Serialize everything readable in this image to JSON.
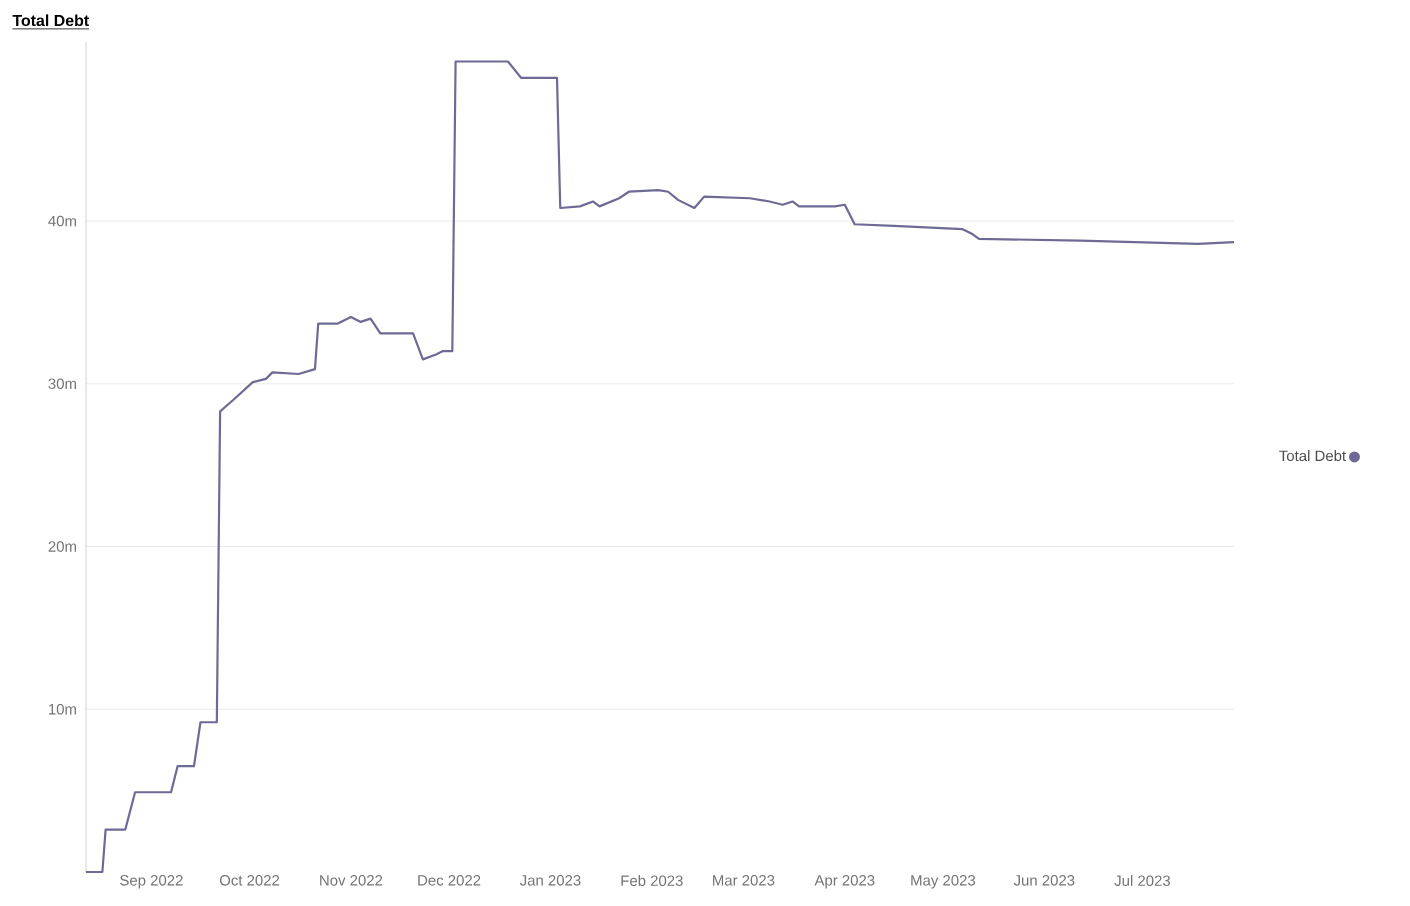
{
  "chart_data": {
    "type": "line",
    "title": "Total Debt",
    "x": [
      "2022-08-12",
      "2022-08-17",
      "2022-08-18",
      "2022-08-24",
      "2022-08-27",
      "2022-09-07",
      "2022-09-09",
      "2022-09-14",
      "2022-09-16",
      "2022-09-21",
      "2022-09-22",
      "2022-09-26",
      "2022-10-02",
      "2022-10-06",
      "2022-10-08",
      "2022-10-16",
      "2022-10-21",
      "2022-10-22",
      "2022-10-28",
      "2022-11-01",
      "2022-11-04",
      "2022-11-07",
      "2022-11-10",
      "2022-11-20",
      "2022-11-23",
      "2022-11-27",
      "2022-11-29",
      "2022-12-02",
      "2022-12-03",
      "2022-12-19",
      "2022-12-23",
      "2023-01-03",
      "2023-01-04",
      "2023-01-10",
      "2023-01-14",
      "2023-01-16",
      "2023-01-22",
      "2023-01-25",
      "2023-02-03",
      "2023-02-06",
      "2023-02-09",
      "2023-02-14",
      "2023-02-17",
      "2023-03-03",
      "2023-03-09",
      "2023-03-13",
      "2023-03-16",
      "2023-03-18",
      "2023-03-29",
      "2023-04-01",
      "2023-04-04",
      "2023-04-16",
      "2023-05-07",
      "2023-05-10",
      "2023-05-12",
      "2023-06-12",
      "2023-07-18",
      "2023-07-29"
    ],
    "series": [
      {
        "name": "Total Debt",
        "color": "#6e6a96",
        "values": [
          0,
          0,
          2.6,
          2.6,
          4.9,
          4.9,
          6.5,
          6.5,
          9.2,
          9.2,
          28.3,
          29.0,
          30.1,
          30.3,
          30.7,
          30.6,
          30.9,
          33.7,
          33.7,
          34.1,
          33.8,
          34.0,
          33.1,
          33.1,
          31.5,
          31.8,
          32.0,
          32.0,
          49.8,
          49.8,
          48.8,
          48.8,
          40.8,
          40.9,
          41.2,
          40.9,
          41.4,
          41.8,
          41.9,
          41.8,
          41.3,
          40.8,
          41.5,
          41.4,
          41.2,
          41.0,
          41.2,
          40.9,
          40.9,
          41.0,
          39.8,
          39.7,
          39.5,
          39.2,
          38.9,
          38.8,
          38.6,
          38.7
        ]
      }
    ],
    "xlim": [
      "2022-08-12",
      "2023-07-29"
    ],
    "ylim": [
      0,
      51
    ],
    "xticks": [
      {
        "value": "2022-09-01",
        "label": "Sep 2022"
      },
      {
        "value": "2022-10-01",
        "label": "Oct 2022"
      },
      {
        "value": "2022-11-01",
        "label": "Nov 2022"
      },
      {
        "value": "2022-12-01",
        "label": "Dec 2022"
      },
      {
        "value": "2023-01-01",
        "label": "Jan 2023"
      },
      {
        "value": "2023-02-01",
        "label": "Feb 2023"
      },
      {
        "value": "2023-03-01",
        "label": "Mar 2023"
      },
      {
        "value": "2023-04-01",
        "label": "Apr 2023"
      },
      {
        "value": "2023-05-01",
        "label": "May 2023"
      },
      {
        "value": "2023-06-01",
        "label": "Jun 2023"
      },
      {
        "value": "2023-07-01",
        "label": "Jul 2023"
      }
    ],
    "yticks": [
      {
        "value": 10,
        "label": "10m"
      },
      {
        "value": 20,
        "label": "20m"
      },
      {
        "value": 30,
        "label": "30m"
      },
      {
        "value": 40,
        "label": "40m"
      }
    ],
    "grid": "y",
    "legend": "right"
  }
}
